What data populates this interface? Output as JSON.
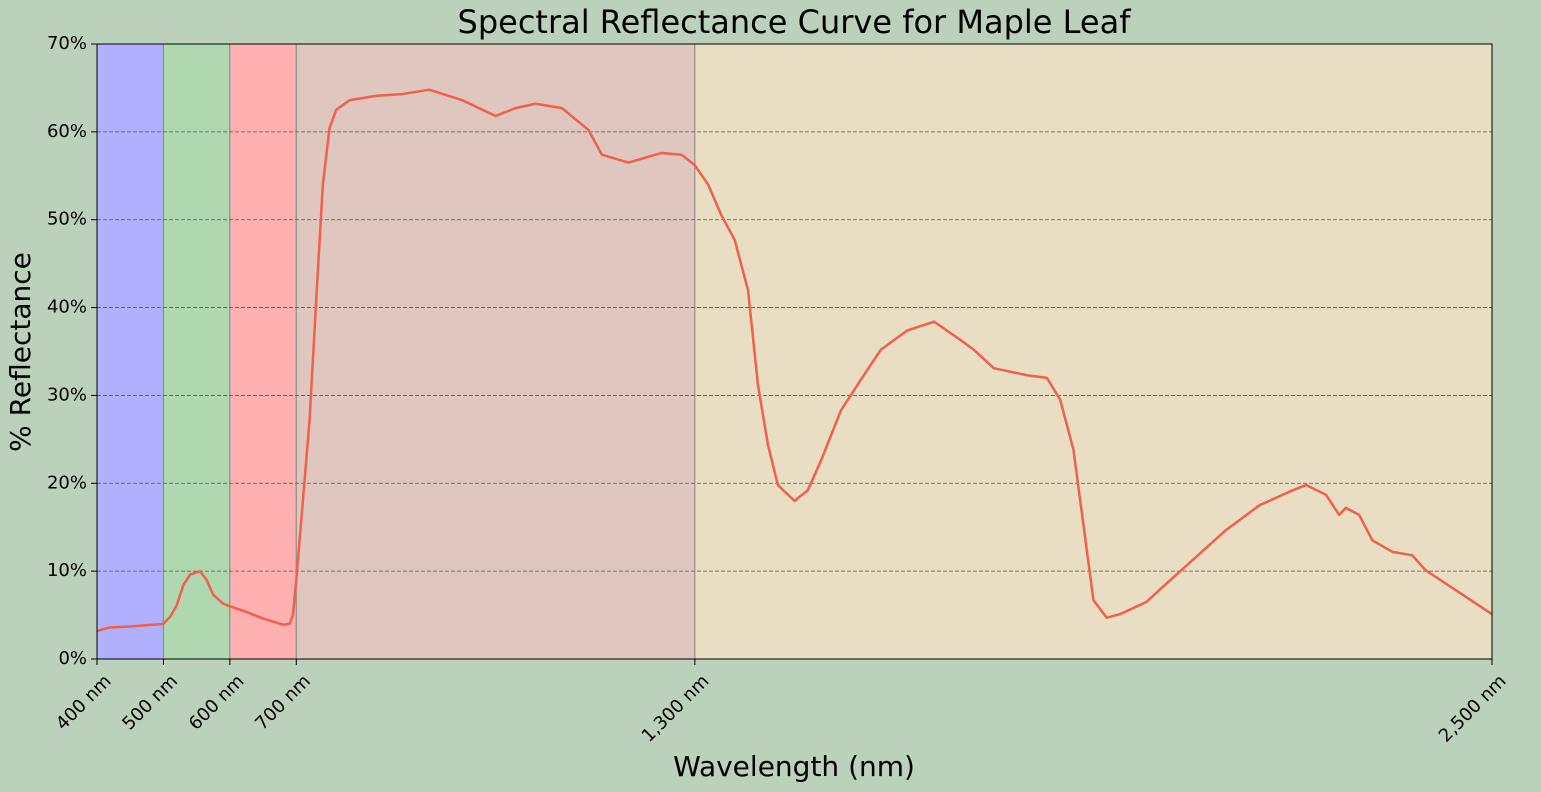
{
  "chart_data": {
    "type": "line",
    "title": "Spectral Reflectance Curve for Maple Leaf",
    "x_label": "Wavelength (nm)",
    "y_label": "% Reflectance",
    "xlim": [
      400,
      2500
    ],
    "ylim": [
      0,
      70
    ],
    "xticks": [
      {
        "value": 400,
        "label": "400 nm"
      },
      {
        "value": 500,
        "label": "500 nm"
      },
      {
        "value": 600,
        "label": "600 nm"
      },
      {
        "value": 700,
        "label": "700 nm"
      },
      {
        "value": 1300,
        "label": "1,300 nm"
      },
      {
        "value": 2500,
        "label": "2,500 nm"
      }
    ],
    "yticks": [
      {
        "value": 0,
        "label": "0%"
      },
      {
        "value": 10,
        "label": "10%"
      },
      {
        "value": 20,
        "label": "20%"
      },
      {
        "value": 30,
        "label": "30%"
      },
      {
        "value": 40,
        "label": "40%"
      },
      {
        "value": 50,
        "label": "50%"
      },
      {
        "value": 60,
        "label": "60%"
      },
      {
        "value": 70,
        "label": "70%"
      }
    ],
    "grid": true,
    "bands": [
      {
        "start": 400,
        "end": 500,
        "color": "#b0b0ff"
      },
      {
        "start": 500,
        "end": 600,
        "color": "#b0d8b0"
      },
      {
        "start": 600,
        "end": 700,
        "color": "#ffb0b0"
      },
      {
        "start": 700,
        "end": 1300,
        "color": "#dfc7c0"
      },
      {
        "start": 1300,
        "end": 2500,
        "color": "#e9dec4"
      }
    ],
    "x": [
      400,
      420,
      450,
      500,
      510,
      520,
      530,
      540,
      555,
      565,
      575,
      590,
      600,
      620,
      650,
      680,
      690,
      695,
      700,
      710,
      720,
      730,
      740,
      750,
      760,
      780,
      820,
      860,
      900,
      950,
      1000,
      1030,
      1060,
      1100,
      1140,
      1160,
      1200,
      1250,
      1280,
      1300,
      1320,
      1340,
      1360,
      1380,
      1395,
      1410,
      1425,
      1450,
      1470,
      1490,
      1520,
      1550,
      1580,
      1620,
      1660,
      1700,
      1720,
      1750,
      1800,
      1830,
      1850,
      1870,
      1880,
      1900,
      1920,
      1940,
      1980,
      2000,
      2050,
      2100,
      2150,
      2200,
      2220,
      2250,
      2270,
      2280,
      2300,
      2320,
      2350,
      2380,
      2400,
      2450,
      2500
    ],
    "series": [
      {
        "name": "Maple Leaf",
        "color": "#f0604a",
        "values": [
          3.2,
          3.6,
          3.7,
          4.0,
          4.8,
          6.1,
          8.4,
          9.6,
          10.0,
          9.0,
          7.3,
          6.3,
          6.0,
          5.5,
          4.6,
          3.9,
          4.0,
          5.0,
          9.0,
          18.1,
          27.2,
          40.9,
          54.0,
          60.4,
          62.5,
          63.6,
          64.1,
          64.3,
          64.8,
          63.6,
          61.8,
          62.7,
          63.2,
          62.7,
          60.2,
          57.4,
          56.5,
          57.6,
          57.4,
          56.2,
          54.0,
          50.5,
          47.7,
          42.0,
          31.2,
          24.4,
          19.8,
          18.0,
          19.2,
          22.6,
          28.3,
          31.8,
          35.2,
          37.4,
          38.4,
          36.3,
          35.2,
          33.1,
          32.3,
          32.0,
          29.5,
          23.8,
          18.1,
          6.7,
          4.7,
          5.1,
          6.5,
          7.9,
          11.3,
          14.7,
          17.5,
          19.2,
          19.8,
          18.7,
          16.4,
          17.2,
          16.4,
          13.5,
          12.2,
          11.8,
          10.1,
          7.6,
          5.1
        ]
      }
    ]
  }
}
